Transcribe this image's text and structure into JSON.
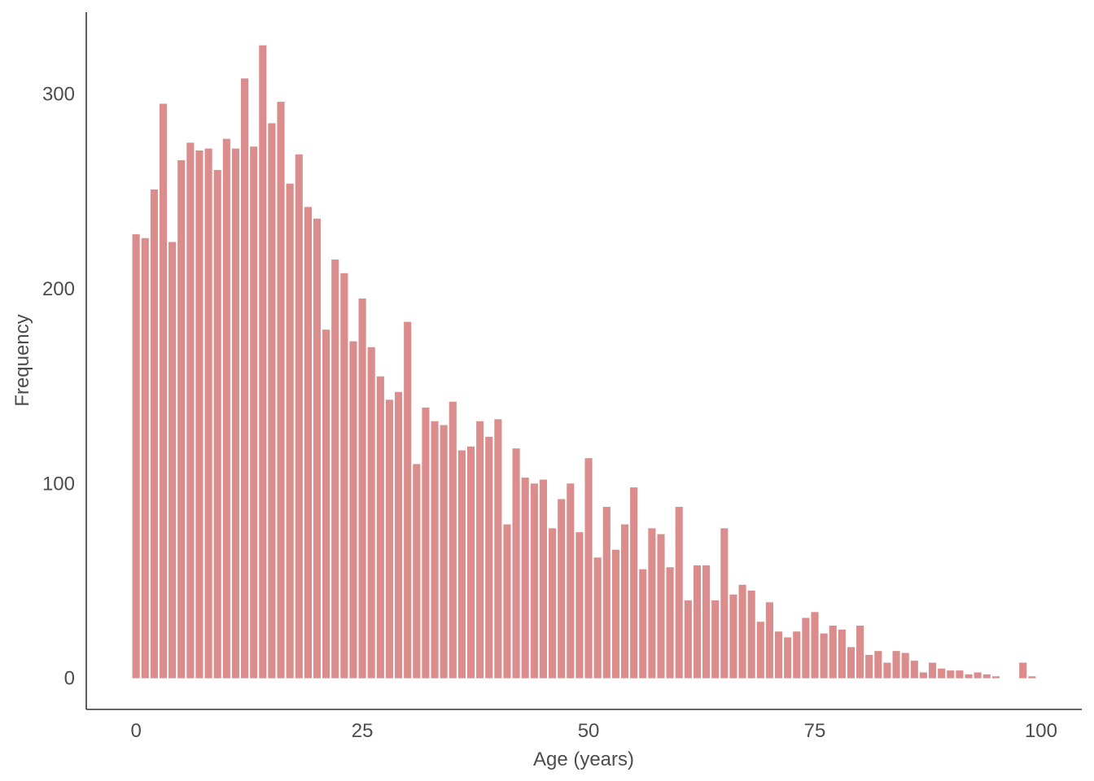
{
  "chart_data": {
    "type": "bar",
    "title": "",
    "xlabel": "Age (years)",
    "ylabel": "Frequency",
    "xlim": [
      -5.5,
      104.5
    ],
    "ylim": [
      -16,
      342
    ],
    "grid": false,
    "legend": "none",
    "bar_color": "#db8d8d",
    "x_ticks": [
      0,
      25,
      50,
      75,
      100
    ],
    "y_ticks": [
      0,
      100,
      200,
      300
    ],
    "x": [
      0,
      1,
      2,
      3,
      4,
      5,
      6,
      7,
      8,
      9,
      10,
      11,
      12,
      13,
      14,
      15,
      16,
      17,
      18,
      19,
      20,
      21,
      22,
      23,
      24,
      25,
      26,
      27,
      28,
      29,
      30,
      31,
      32,
      33,
      34,
      35,
      36,
      37,
      38,
      39,
      40,
      41,
      42,
      43,
      44,
      45,
      46,
      47,
      48,
      49,
      50,
      51,
      52,
      53,
      54,
      55,
      56,
      57,
      58,
      59,
      60,
      61,
      62,
      63,
      64,
      65,
      66,
      67,
      68,
      69,
      70,
      71,
      72,
      73,
      74,
      75,
      76,
      77,
      78,
      79,
      80,
      81,
      82,
      83,
      84,
      85,
      86,
      87,
      88,
      89,
      90,
      91,
      92,
      93,
      94,
      95,
      96,
      97,
      98,
      99
    ],
    "values": [
      228,
      226,
      251,
      295,
      224,
      266,
      275,
      271,
      272,
      261,
      277,
      272,
      308,
      273,
      325,
      285,
      296,
      254,
      269,
      242,
      236,
      179,
      215,
      208,
      173,
      195,
      170,
      155,
      143,
      147,
      183,
      110,
      139,
      132,
      130,
      142,
      117,
      119,
      132,
      124,
      133,
      79,
      118,
      103,
      100,
      102,
      77,
      92,
      100,
      75,
      113,
      62,
      88,
      66,
      79,
      98,
      56,
      77,
      74,
      57,
      88,
      40,
      58,
      58,
      40,
      77,
      43,
      48,
      45,
      29,
      39,
      24,
      21,
      24,
      31,
      34,
      23,
      27,
      25,
      16,
      27,
      12,
      14,
      8,
      14,
      13,
      9,
      3,
      8,
      5,
      4,
      4,
      2,
      3,
      2,
      1,
      0,
      0,
      8,
      1
    ]
  }
}
